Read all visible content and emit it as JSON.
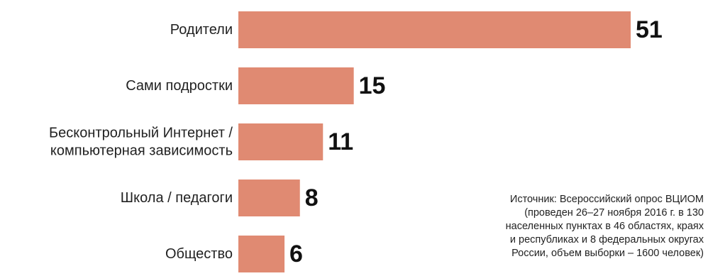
{
  "chart_data": {
    "type": "bar",
    "orientation": "horizontal",
    "categories": [
      [
        "Родители"
      ],
      [
        "Сами подростки"
      ],
      [
        "Бесконтрольный Интернет /",
        "компьютерная зависимость"
      ],
      [
        "Школа / педагоги"
      ],
      [
        "Общество"
      ]
    ],
    "values": [
      51,
      15,
      11,
      8,
      6
    ],
    "bar_color": "#e08a72",
    "grid": false,
    "legend": false
  },
  "source_note": [
    "Источник: Всероссийский опрос ВЦИОМ",
    "(проведен 26–27 ноября 2016 г. в 130",
    "населенных пунктах в 46 областях, краях",
    "и республиках и 8 федеральных округах",
    "России, объем выборки – 1600 человек)"
  ]
}
